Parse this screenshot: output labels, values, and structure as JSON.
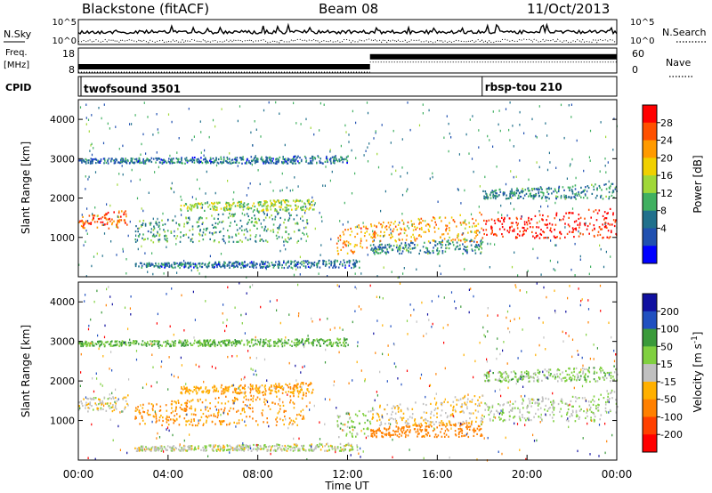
{
  "chart_data": {
    "type": "heatmap",
    "header": {
      "station": "Blackstone (fitACF)",
      "beam": "Beam 08",
      "date": "11/Oct/2013"
    },
    "time_axis": {
      "label": "Time UT",
      "ticks": [
        "00:00",
        "04:00",
        "08:00",
        "12:00",
        "16:00",
        "20:00",
        "00:00"
      ],
      "range_hours": [
        0,
        24
      ]
    },
    "sky_panel": {
      "left_label": "N.Sky",
      "right_label": "N.Search",
      "left_ticks": [
        "10^5",
        "10^0"
      ],
      "right_ticks": [
        "10^5",
        "10^0"
      ]
    },
    "freq_panel": {
      "left_label_line1": "Freq.",
      "left_label_line2": "[MHz]",
      "right_label": "Nave",
      "left_ticks": [
        "18",
        "8"
      ],
      "right_ticks": [
        "60",
        "0"
      ],
      "segments": [
        {
          "start_h": 0.0,
          "end_h": 13.0,
          "freq_mhz": 10.5
        },
        {
          "start_h": 13.0,
          "end_h": 24.0,
          "freq_mhz": 14.5
        }
      ]
    },
    "cpid_panel": {
      "label": "CPID",
      "programs": [
        {
          "name": "twofsound 3501",
          "start_h": 0.0
        },
        {
          "name": "rbsp-tou 210",
          "start_h": 18.0
        }
      ]
    },
    "power_panel": {
      "ylabel": "Slant Range [km]",
      "yticks": [
        1000,
        2000,
        3000,
        4000
      ],
      "ylim": [
        0,
        4500
      ],
      "colorbar_label": "Power [dB]",
      "colorbar_ticks": [
        "28",
        "24",
        "20",
        "16",
        "12",
        "8",
        "4"
      ],
      "colorbar_colors": [
        "#ff0000",
        "#ff5000",
        "#ff9a00",
        "#f0d000",
        "#a0d838",
        "#40b060",
        "#20708c",
        "#2050b0",
        "#0000ff"
      ]
    },
    "velocity_panel": {
      "ylabel": "Slant Range [km]",
      "yticks": [
        1000,
        2000,
        3000,
        4000
      ],
      "ylim": [
        0,
        4500
      ],
      "colorbar_label": "Velocity [m s^-1]",
      "colorbar_ticks": [
        "200",
        "100",
        "50",
        "15",
        "-15",
        "-50",
        "-100",
        "-200"
      ],
      "colorbar_colors": [
        "#1010a0",
        "#2050c0",
        "#3a9a3a",
        "#80d040",
        "#c0c0c0",
        "#ffb000",
        "#ff8000",
        "#ff4000",
        "#ff0000"
      ]
    },
    "echo_regions": [
      {
        "start_h": 0.0,
        "end_h": 2.2,
        "r_start": 1250,
        "r_end": 1750,
        "power_db": 24,
        "vel": -20
      },
      {
        "start_h": 2.5,
        "end_h": 10.2,
        "r_start": 900,
        "r_end": 1800,
        "power_db": 10,
        "vel": -80
      },
      {
        "start_h": 4.5,
        "end_h": 10.5,
        "r_start": 1700,
        "r_end": 2000,
        "power_db": 14,
        "vel": -60
      },
      {
        "start_h": 0.0,
        "end_h": 12.0,
        "r_start": 2900,
        "r_end": 3100,
        "power_db": 6,
        "vel": 30
      },
      {
        "start_h": 11.5,
        "end_h": 13.0,
        "r_start": 600,
        "r_end": 1500,
        "power_db": 22,
        "vel": 10
      },
      {
        "start_h": 13.0,
        "end_h": 18.0,
        "r_start": 900,
        "r_end": 1700,
        "power_db": 20,
        "vel": -30
      },
      {
        "start_h": 13.0,
        "end_h": 18.0,
        "r_start": 600,
        "r_end": 1000,
        "power_db": 8,
        "vel": -120
      },
      {
        "start_h": 18.0,
        "end_h": 24.0,
        "r_start": 1000,
        "r_end": 1800,
        "power_db": 28,
        "vel": 0
      },
      {
        "start_h": 18.0,
        "end_h": 24.0,
        "r_start": 2000,
        "r_end": 2400,
        "power_db": 8,
        "vel": 10
      },
      {
        "start_h": 2.5,
        "end_h": 12.5,
        "r_start": 250,
        "r_end": 450,
        "power_db": 6,
        "vel": -10
      }
    ]
  }
}
